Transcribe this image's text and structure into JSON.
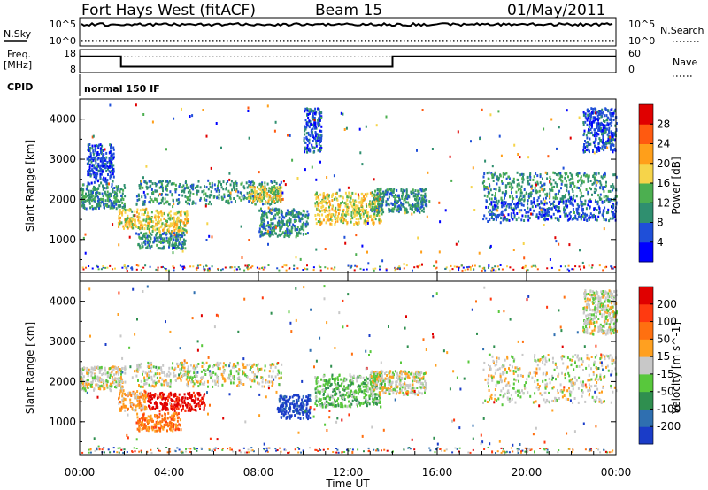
{
  "header": {
    "station": "Fort Hays West (fitACF)",
    "beam": "Beam 15",
    "date": "01/May/2011"
  },
  "summary": {
    "nsky_label": "N.Sky",
    "nsearch_label": "N.Search",
    "freq_label_line1": "Freq.",
    "freq_label_line2": "[MHz]",
    "nave_label": "Nave",
    "cpid_label": "CPID",
    "cpid_value": "normal 150 IF",
    "noise_ticks": [
      "10^5",
      "10^0"
    ],
    "freq_ticks": [
      "18",
      "8"
    ],
    "nave_ticks": [
      "60",
      "0"
    ],
    "freq_series_mhz": [
      [
        0.0,
        17
      ],
      [
        1.85,
        17
      ],
      [
        1.85,
        10.5
      ],
      [
        14.0,
        10.5
      ],
      [
        14.0,
        17
      ],
      [
        24.0,
        17
      ]
    ],
    "nave_level": 52,
    "nsky_level_log10": 4.3,
    "nsearch_level_log10": 0.8
  },
  "chart_data": [
    {
      "type": "heatmap",
      "panel": "power",
      "ylabel": "Slant Range [km]",
      "xlabel": "Time UT",
      "x_ticks": [
        "00:00",
        "04:00",
        "08:00",
        "12:00",
        "16:00",
        "20:00",
        "00:00"
      ],
      "xlim_hours": [
        0,
        24
      ],
      "y_ticks": [
        1000,
        2000,
        3000,
        4000
      ],
      "ylim_km": [
        180,
        4500
      ],
      "colorbar": {
        "label": "Power [dB]",
        "ticks": [
          "4",
          "8",
          "12",
          "16",
          "20",
          "24",
          "28"
        ],
        "colors": [
          "#0000ff",
          "#1f4fd8",
          "#2f8f6f",
          "#4caf50",
          "#f6d44a",
          "#ff9f1a",
          "#ff5a10",
          "#e00000"
        ]
      },
      "echo_regions": [
        {
          "t": [
            0.0,
            2.0
          ],
          "range_km": [
            1800,
            2400
          ],
          "level": 2
        },
        {
          "t": [
            0.3,
            1.5
          ],
          "range_km": [
            2400,
            3400
          ],
          "level": 1
        },
        {
          "t": [
            1.7,
            3.0
          ],
          "range_km": [
            1300,
            1800
          ],
          "level": 4
        },
        {
          "t": [
            3.0,
            4.8
          ],
          "range_km": [
            1200,
            1750
          ],
          "level": 4
        },
        {
          "t": [
            2.5,
            4.7
          ],
          "range_km": [
            800,
            1200
          ],
          "level": 2
        },
        {
          "t": [
            2.5,
            9.0
          ],
          "range_km": [
            1900,
            2500
          ],
          "level": 2
        },
        {
          "t": [
            7.5,
            9.0
          ],
          "range_km": [
            1950,
            2350
          ],
          "level": 4
        },
        {
          "t": [
            8.0,
            10.2
          ],
          "range_km": [
            1100,
            1800
          ],
          "level": 2
        },
        {
          "t": [
            10.0,
            10.8
          ],
          "range_km": [
            3200,
            4300
          ],
          "level": 1
        },
        {
          "t": [
            10.5,
            13.5
          ],
          "range_km": [
            1400,
            2200
          ],
          "level": 4
        },
        {
          "t": [
            13.0,
            15.5
          ],
          "range_km": [
            1700,
            2300
          ],
          "level": 2
        },
        {
          "t": [
            18.0,
            24.0
          ],
          "range_km": [
            2000,
            2700
          ],
          "level": 2
        },
        {
          "t": [
            18.0,
            24.0
          ],
          "range_km": [
            1500,
            2000
          ],
          "level": 1
        },
        {
          "t": [
            22.5,
            24.0
          ],
          "range_km": [
            3200,
            4300
          ],
          "level": 1
        }
      ]
    },
    {
      "type": "heatmap",
      "panel": "velocity",
      "ylabel": "Slant Range [km]",
      "xlabel": "Time UT",
      "x_ticks": [
        "00:00",
        "04:00",
        "08:00",
        "12:00",
        "16:00",
        "20:00",
        "00:00"
      ],
      "xlim_hours": [
        0,
        24
      ],
      "y_ticks": [
        1000,
        2000,
        3000,
        4000
      ],
      "ylim_km": [
        180,
        4500
      ],
      "colorbar": {
        "label": "Velocity [m s^-1]",
        "ticks": [
          "200",
          "100",
          "50",
          "15",
          "-15",
          "-50",
          "-100",
          "-200"
        ],
        "colors": [
          "#1a3cc8",
          "#2f6fb0",
          "#2f8f4f",
          "#58c83c",
          "#c8c8c8",
          "#ffa020",
          "#ff7010",
          "#ff3a10",
          "#e00000"
        ]
      },
      "echo_regions": [
        {
          "t": [
            0.0,
            2.0
          ],
          "range_km": [
            1800,
            2400
          ],
          "level": 4
        },
        {
          "t": [
            1.7,
            3.0
          ],
          "range_km": [
            1300,
            1800
          ],
          "level": 5
        },
        {
          "t": [
            3.0,
            5.6
          ],
          "range_km": [
            1300,
            1750
          ],
          "level": 8
        },
        {
          "t": [
            2.5,
            4.5
          ],
          "range_km": [
            800,
            1250
          ],
          "level": 6
        },
        {
          "t": [
            2.5,
            9.0
          ],
          "range_km": [
            1900,
            2500
          ],
          "level": 4
        },
        {
          "t": [
            8.8,
            10.3
          ],
          "range_km": [
            1100,
            1700
          ],
          "level": 0
        },
        {
          "t": [
            10.5,
            13.5
          ],
          "range_km": [
            1400,
            2200
          ],
          "level": 3
        },
        {
          "t": [
            13.0,
            15.5
          ],
          "range_km": [
            1700,
            2300
          ],
          "level": 4
        },
        {
          "t": [
            18.0,
            24.0
          ],
          "range_km": [
            1500,
            2700
          ],
          "level": 4
        },
        {
          "t": [
            22.5,
            24.0
          ],
          "range_km": [
            3200,
            4300
          ],
          "level": 4
        }
      ]
    }
  ]
}
